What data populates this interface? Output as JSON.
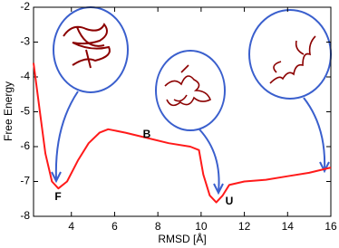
{
  "chart_data": {
    "type": "line",
    "x_label": "RMSD [Å]",
    "y_label": "Free Energy",
    "x": [
      2.25,
      2.5,
      2.8,
      3.1,
      3.4,
      3.8,
      4.3,
      4.8,
      5.3,
      5.7,
      6.5,
      7.5,
      8.5,
      9.5,
      9.9,
      10.1,
      10.4,
      10.7,
      11.0,
      11.3,
      12,
      13,
      14,
      15,
      16
    ],
    "series": [
      {
        "color": "#ff1a1a",
        "values": [
          -3.6,
          -4.8,
          -6.2,
          -7.0,
          -7.2,
          -7.0,
          -6.4,
          -5.9,
          -5.6,
          -5.5,
          -5.6,
          -5.75,
          -5.9,
          -6.0,
          -6.1,
          -6.8,
          -7.4,
          -7.6,
          -7.4,
          -7.1,
          -7.0,
          -6.95,
          -6.85,
          -6.75,
          -6.6
        ]
      }
    ],
    "xlim": [
      2.25,
      16
    ],
    "ylim": [
      -8,
      -2
    ],
    "xticks": [
      4,
      6,
      8,
      10,
      12,
      14,
      16
    ],
    "yticks": [
      -8,
      -7,
      -6,
      -5,
      -4,
      -3,
      -2
    ],
    "annotations": [
      "F",
      "B",
      "U"
    ]
  }
}
